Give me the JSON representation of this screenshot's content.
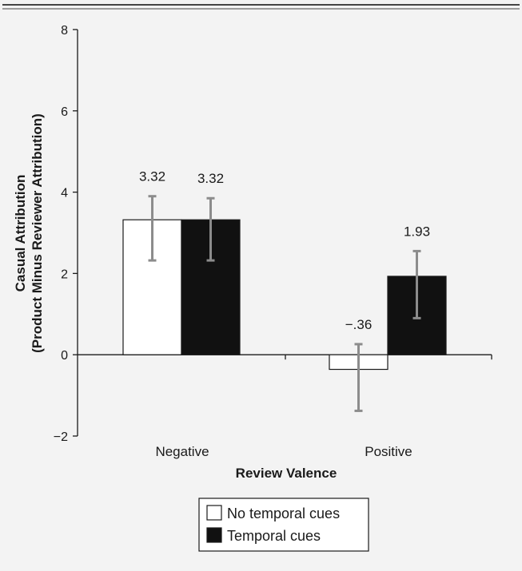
{
  "chart_data": {
    "type": "bar",
    "categories": [
      "Negative",
      "Positive"
    ],
    "xlabel": "Review Valence",
    "ylabel_lines": [
      "Casual Attribution",
      "(Product Minus Reviewer Attribution)"
    ],
    "ylim": [
      -2,
      8
    ],
    "yticks": [
      -2,
      0,
      2,
      4,
      6,
      8
    ],
    "ytick_labels": [
      "−2",
      "0",
      "2",
      "4",
      "6",
      "8"
    ],
    "grid": false,
    "legend_position": "bottom-center",
    "series": [
      {
        "name": "No temporal cues",
        "color": "#ffffff",
        "values": [
          3.32,
          -0.36
        ],
        "value_labels": [
          "3.32",
          "−.36"
        ],
        "error_low": [
          2.32,
          -1.38
        ],
        "error_high": [
          3.9,
          0.26
        ]
      },
      {
        "name": "Temporal cues",
        "color": "#111111",
        "values": [
          3.32,
          1.93
        ],
        "value_labels": [
          "3.32",
          "1.93"
        ],
        "error_low": [
          2.32,
          0.9
        ],
        "error_high": [
          3.85,
          2.55
        ]
      }
    ],
    "colors": {
      "axis": "#1a1a1a",
      "error_bar": "#8c8c8c",
      "rule": "#444444"
    }
  }
}
